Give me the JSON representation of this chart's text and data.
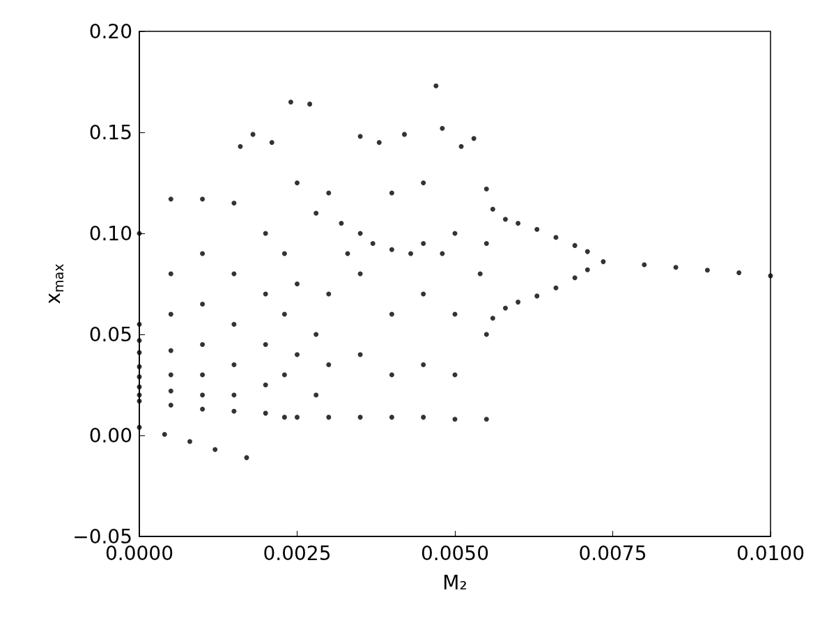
{
  "chart_data": {
    "type": "scatter",
    "xlabel": "M₂",
    "ylabel": "x$_{max}$",
    "marker": "circle",
    "grid": false,
    "xlim": [
      0,
      0.01
    ],
    "xticks": [
      {
        "value": 0,
        "label": "0.0000"
      },
      {
        "value": 0.0025,
        "label": "0.0025"
      },
      {
        "value": 0.005,
        "label": "0.0050"
      },
      {
        "value": 0.0075,
        "label": "0.0075"
      },
      {
        "value": 0.01,
        "label": "0.0100"
      }
    ],
    "ylim": [
      -0.05,
      0.2
    ],
    "yticks": [
      {
        "value": -0.05,
        "label": "−0.05"
      },
      {
        "value": 0,
        "label": "0.00"
      },
      0.05,
      {
        "value": 0.1,
        "label": "0.10"
      },
      0.15,
      {
        "value": 0.2,
        "label": "0.20"
      }
    ],
    "series": [
      {
        "color": "#000000",
        "x": [
          0,
          0.0004,
          0.0008,
          0.0012,
          0.0017
        ],
        "values": [
          0.004,
          0.0005,
          -0.003,
          -0.007,
          -0.011
        ]
      },
      {
        "color": "#000000",
        "x": [
          0,
          0,
          0,
          0,
          0,
          0,
          0,
          0,
          0,
          0.0005,
          0.0005,
          0.0005,
          0.0005,
          0.0005,
          0.0005,
          0.0005,
          0.001,
          0.001,
          0.001,
          0.001,
          0.001,
          0.001,
          0.001,
          0.0015,
          0.0015,
          0.0015,
          0.0015,
          0.0015,
          0.0015,
          0.0016,
          0.0018,
          0.002,
          0.002,
          0.002,
          0.002,
          0.002,
          0.0021,
          0.0023,
          0.0023,
          0.0023,
          0.0023,
          0.0024,
          0.0025,
          0.0025,
          0.0025,
          0.0025,
          0.0027,
          0.0028,
          0.0028,
          0.0028,
          0.003,
          0.003,
          0.003,
          0.003,
          0.0032,
          0.0033,
          0.0035,
          0.0035,
          0.0035,
          0.0035,
          0.0035,
          0.0037,
          0.0038,
          0.004,
          0.004,
          0.004,
          0.004,
          0.004,
          0.0042,
          0.0043,
          0.0045,
          0.0045,
          0.0045,
          0.0045,
          0.0045,
          0.0047,
          0.0048,
          0.0048,
          0.005,
          0.005,
          0.005,
          0.005,
          0.0051,
          0.0053,
          0.0054,
          0.0055,
          0.0055,
          0.0055,
          0.0055
        ],
        "values": [
          0.017,
          0.02,
          0.024,
          0.029,
          0.034,
          0.041,
          0.047,
          0.055,
          0.1,
          0.015,
          0.022,
          0.03,
          0.042,
          0.06,
          0.08,
          0.117,
          0.013,
          0.02,
          0.03,
          0.045,
          0.065,
          0.09,
          0.117,
          0.012,
          0.02,
          0.035,
          0.055,
          0.08,
          0.115,
          0.143,
          0.149,
          0.011,
          0.025,
          0.045,
          0.07,
          0.1,
          0.145,
          0.009,
          0.03,
          0.06,
          0.09,
          0.165,
          0.009,
          0.04,
          0.075,
          0.125,
          0.164,
          0.02,
          0.05,
          0.11,
          0.009,
          0.035,
          0.07,
          0.12,
          0.105,
          0.09,
          0.009,
          0.04,
          0.08,
          0.1,
          0.148,
          0.095,
          0.145,
          0.009,
          0.03,
          0.06,
          0.092,
          0.12,
          0.149,
          0.09,
          0.009,
          0.035,
          0.07,
          0.095,
          0.125,
          0.173,
          0.152,
          0.09,
          0.008,
          0.03,
          0.06,
          0.1,
          0.143,
          0.147,
          0.08,
          0.008,
          0.05,
          0.095,
          0.122
        ]
      },
      {
        "color": "#000000",
        "x": [
          0.0056,
          0.0058,
          0.006,
          0.0063,
          0.0066,
          0.0069,
          0.0071
        ],
        "values": [
          0.112,
          0.107,
          0.105,
          0.102,
          0.098,
          0.094,
          0.091
        ]
      },
      {
        "color": "#000000",
        "x": [
          0.0056,
          0.0058,
          0.006,
          0.0063,
          0.0066,
          0.0069,
          0.0071
        ],
        "values": [
          0.058,
          0.063,
          0.066,
          0.069,
          0.073,
          0.078,
          0.082
        ]
      },
      {
        "color": "#000000",
        "x": [
          0.00735,
          0.008,
          0.0085,
          0.009,
          0.0095,
          0.01
        ],
        "values": [
          0.086,
          0.0845,
          0.0832,
          0.0818,
          0.0805,
          0.079
        ]
      }
    ]
  }
}
